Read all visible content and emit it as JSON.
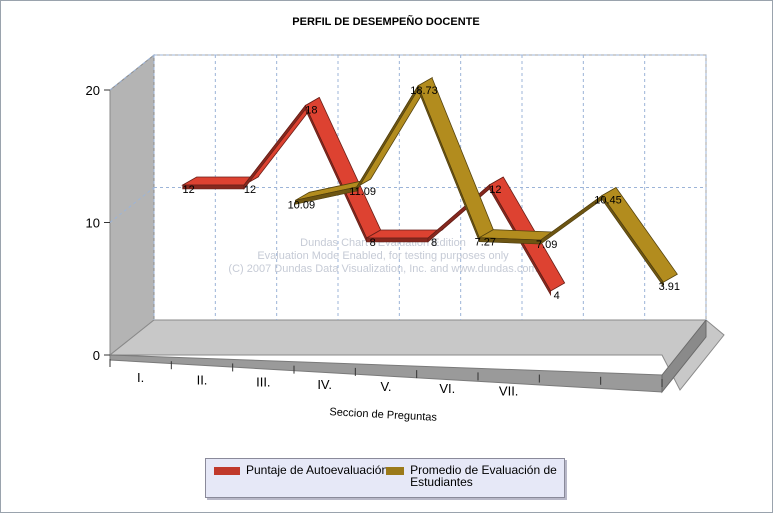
{
  "chart_data": {
    "type": "line",
    "style": "3d-ribbon",
    "title": "PERFIL DE DESEMPEÑO DOCENTE",
    "xlabel": "Seccion de Preguntas",
    "ylabel": "",
    "ylim": [
      0,
      20
    ],
    "yticks": [
      "0",
      "10",
      "20"
    ],
    "categories": [
      "I.",
      "II.",
      "III.",
      "IV.",
      "V.",
      "VI.",
      "VII.",
      "",
      ""
    ],
    "series": [
      {
        "name": "Puntaje de Autoevaluación",
        "color": "#c0392b",
        "values": [
          12,
          12,
          18,
          8,
          8,
          12,
          4,
          null,
          null
        ],
        "labels": [
          "12",
          "12",
          "18",
          "8",
          "8",
          "12",
          "4",
          "",
          ""
        ]
      },
      {
        "name": "Promedio de Evaluación de Estudiantes",
        "color": "#9b7a1a",
        "values": [
          null,
          null,
          10.09,
          11.09,
          18.73,
          7.27,
          7.09,
          10.45,
          3.91
        ],
        "labels": [
          "",
          "",
          "10.09",
          "11.09",
          "18.73",
          "7.27",
          "7.09",
          "10.45",
          "3.91"
        ]
      }
    ],
    "grid": true,
    "legend_position": "bottom",
    "watermark": [
      "Dundas Chart - Evaluation Edition",
      "Evaluation Mode Enabled, for testing purposes only",
      "(C) 2007 Dundas Data Visualization, Inc. and www.dundas.com"
    ]
  },
  "legend": {
    "items": [
      {
        "label": "Puntaje de Autoevaluación",
        "color": "#c0392b"
      },
      {
        "label": "Promedio de Evaluación de Estudiantes",
        "color": "#9b7a1a"
      }
    ]
  }
}
